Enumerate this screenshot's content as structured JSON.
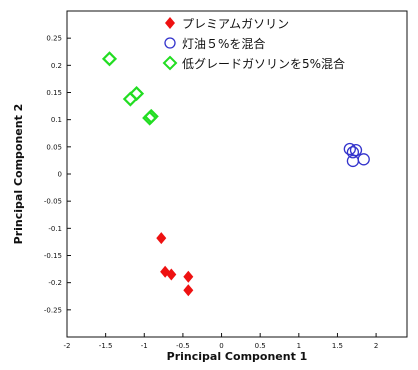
{
  "chart_data": {
    "type": "scatter",
    "title": "",
    "xlabel": "Principal Component 1",
    "ylabel": "Principal Component 2",
    "xlim": [
      -2,
      2.4
    ],
    "ylim": [
      -0.3,
      0.3
    ],
    "xticks": [
      "-2",
      "-1.5",
      "-1",
      "-0.5",
      "0",
      "0.5",
      "1",
      "1.5",
      "2"
    ],
    "yticks": [
      "-0.25",
      "-0.2",
      "-0.15",
      "-0.1",
      "-0.05",
      "0",
      "0.05",
      "0.1",
      "0.15",
      "0.2",
      "0.25"
    ],
    "legend_position": "top-right",
    "series": [
      {
        "name": "プレミアムガソリン",
        "marker": "filled-diamond",
        "color": "#ee1111",
        "x": [
          -0.78,
          -0.73,
          -0.65,
          -0.43,
          -0.43
        ],
        "y": [
          -0.118,
          -0.18,
          -0.185,
          -0.189,
          -0.214
        ]
      },
      {
        "name": "灯油５%を混合",
        "marker": "open-circle",
        "color": "#3333cc",
        "x": [
          1.66,
          1.7,
          1.74,
          1.7,
          1.84
        ],
        "y": [
          0.046,
          0.04,
          0.044,
          0.024,
          0.027
        ]
      },
      {
        "name": "低グレードガソリンを5%混合",
        "marker": "open-diamond",
        "color": "#22dd22",
        "x": [
          -1.45,
          -1.18,
          -1.1,
          -0.93,
          -0.91
        ],
        "y": [
          0.212,
          0.138,
          0.148,
          0.103,
          0.106
        ]
      }
    ]
  }
}
